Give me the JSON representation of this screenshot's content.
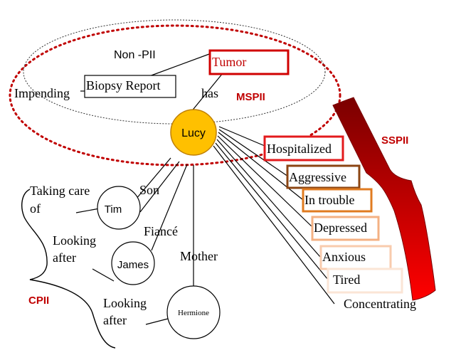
{
  "labels": {
    "non_pii": "Non -PII",
    "tumor": "Tumor",
    "biopsy_report": "Biopsy Report",
    "impending": "Impending",
    "has": "has",
    "mspii": "MSPII",
    "sspii": "SSPII",
    "cpii": "CPII",
    "lucy": "Lucy",
    "tim": "Tim",
    "james": "James",
    "hermione": "Hermione",
    "son": "Son",
    "fiance": "Fiancé",
    "mother": "Mother",
    "taking_care_line1": "Taking care",
    "taking_care_line2": "of",
    "looking_after_1_line1": "Looking",
    "looking_after_1_line2": "after",
    "looking_after_2_line1": "Looking",
    "looking_after_2_line2": "after"
  },
  "conditions": [
    "Hospitalized",
    "Aggressive",
    "In trouble",
    "Depressed",
    "Anxious",
    "Tired",
    "Concentrating"
  ],
  "colors": {
    "mspii_red": "#c00000",
    "lucy_fill": "#ffc000",
    "lucy_stroke": "#c08000",
    "sspii_dark": "#7a0000",
    "sspii_light": "#ff0000",
    "box_hospitalized": "#e31a1c",
    "box_aggressive": "#8b4513",
    "box_in_trouble": "#e07b20",
    "box_depressed": "#f4b183",
    "box_anxious": "#f8cbad",
    "box_tired": "#fbe5d6"
  }
}
